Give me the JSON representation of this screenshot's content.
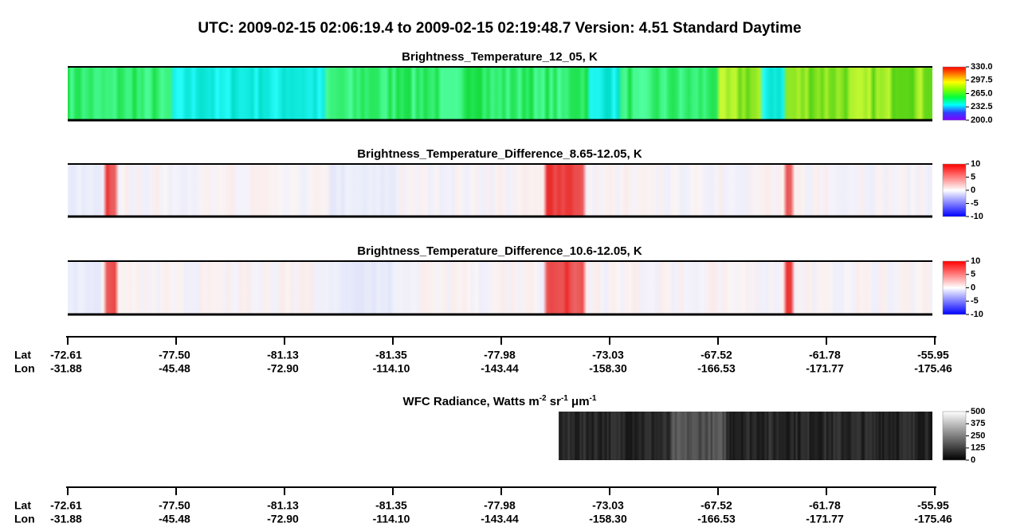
{
  "header": {
    "title": "UTC:  2009-02-15   02:06:19.4  to  2009-02-15   02:19:48.7    Version: 4.51  Standard Daytime"
  },
  "panels": [
    {
      "title": "Brightness_Temperature_12_05, K",
      "range": [
        200,
        330
      ],
      "ticks": [
        {
          "value": 200,
          "label": "200.0"
        },
        232.5,
        {
          "value": 265,
          "label": "265.0"
        },
        297.5,
        {
          "value": 330,
          "label": "330.0"
        }
      ]
    },
    {
      "title": "Brightness_Temperature_Difference_8.65-12.05, K",
      "range": [
        -10,
        10
      ],
      "ticks": [
        -10,
        -5,
        0,
        5,
        10
      ]
    },
    {
      "title": "Brightness_Temperature_Difference_10.6-12.05, K",
      "range": [
        -10,
        10
      ],
      "ticks": [
        -10,
        -5,
        0,
        5,
        10
      ]
    },
    {
      "title_parts": [
        {
          "text": "WFC Radiance, Watts m",
          "sup": "-2"
        },
        {
          "text": " sr",
          "sup": "-1"
        },
        {
          "text": " μm",
          "sup": "-1"
        }
      ],
      "range": [
        0,
        500
      ],
      "ticks": [
        0,
        125,
        250,
        375,
        500
      ]
    }
  ],
  "axes": [
    {
      "row_labels": [
        "Lat",
        "Lon"
      ],
      "lat": [
        "-72.61",
        "-77.50",
        "-81.13",
        "-81.35",
        "-77.98",
        "-73.03",
        "-67.52",
        "-61.78",
        "-55.95"
      ],
      "lon": [
        "-31.88",
        "-45.48",
        "-72.90",
        "-114.10",
        "-143.44",
        "-158.30",
        "-166.53",
        "-171.77",
        "-175.46"
      ]
    },
    {
      "row_labels": [
        "Lat",
        "Lon"
      ],
      "lat": [
        "-72.61",
        "-77.50",
        "-81.13",
        "-81.35",
        "-77.98",
        "-73.03",
        "-67.52",
        "-61.78",
        "-55.95"
      ],
      "lon": [
        "-31.88",
        "-45.48",
        "-72.90",
        "-114.10",
        "-143.44",
        "-158.30",
        "-166.53",
        "-171.77",
        "-175.46"
      ]
    }
  ]
}
